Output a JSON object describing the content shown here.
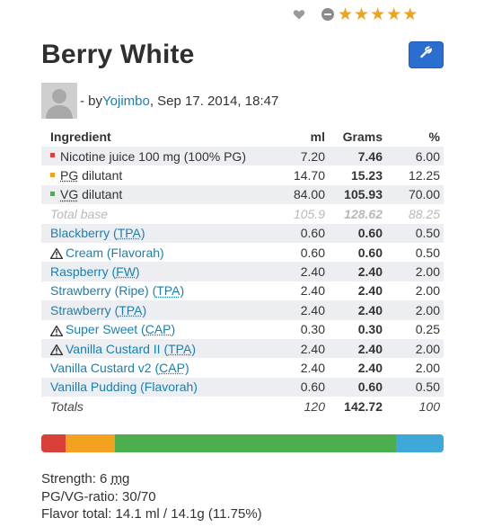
{
  "rating": {
    "stars": 5,
    "star_glyph": "★",
    "icons": [
      "heart-icon",
      "minus-icon"
    ],
    "star_color": "#f0a21b"
  },
  "recipe": {
    "title": "Berry White",
    "edit_icon": "wrench-icon",
    "author_prefix": "- by ",
    "author": "Yojimbo",
    "date": ", Sep 17. 2014, 18:47"
  },
  "table": {
    "headers": {
      "ingredient": "Ingredient",
      "ml": "ml",
      "grams": "Grams",
      "percent": "%"
    },
    "base": [
      {
        "name": "Nicotine juice 100 mg (100% PG)",
        "ml": "7.20",
        "grams": "7.46",
        "percent": "6.00",
        "color": "#d9403a"
      },
      {
        "name_abbr": "PG",
        "name_rest": " dilutant",
        "ml": "14.70",
        "grams": "15.23",
        "percent": "12.25",
        "color": "#f4a020"
      },
      {
        "name_abbr": "VG",
        "name_rest": " dilutant",
        "ml": "84.00",
        "grams": "105.93",
        "percent": "70.00",
        "color": "#4cae4c"
      }
    ],
    "total_base": {
      "label": "Total base",
      "ml": "105.9",
      "grams": "128.62",
      "percent": "88.25"
    },
    "flavors": [
      {
        "name": "Blackberry (",
        "abbr": "TPA",
        "close": ")",
        "warn": false,
        "ml": "0.60",
        "grams": "0.60",
        "percent": "0.50"
      },
      {
        "name": "Cream (Flavorah)",
        "abbr": "",
        "close": "",
        "warn": true,
        "ml": "0.60",
        "grams": "0.60",
        "percent": "0.50"
      },
      {
        "name": "Raspberry (",
        "abbr": "FW",
        "close": ")",
        "warn": false,
        "ml": "2.40",
        "grams": "2.40",
        "percent": "2.00"
      },
      {
        "name": "Strawberry (Ripe) (",
        "abbr": "TPA",
        "close": ")",
        "warn": false,
        "ml": "2.40",
        "grams": "2.40",
        "percent": "2.00"
      },
      {
        "name": "Strawberry (",
        "abbr": "TPA",
        "close": ")",
        "warn": false,
        "ml": "2.40",
        "grams": "2.40",
        "percent": "2.00"
      },
      {
        "name": "Super Sweet (",
        "abbr": "CAP",
        "close": ")",
        "warn": true,
        "ml": "0.30",
        "grams": "0.30",
        "percent": "0.25"
      },
      {
        "name": "Vanilla Custard II (",
        "abbr": "TPA",
        "close": ")",
        "warn": true,
        "ml": "2.40",
        "grams": "2.40",
        "percent": "2.00"
      },
      {
        "name": "Vanilla Custard v2 (",
        "abbr": "CAP",
        "close": ")",
        "warn": false,
        "ml": "2.40",
        "grams": "2.40",
        "percent": "2.00"
      },
      {
        "name": "Vanilla Pudding (Flavorah)",
        "abbr": "",
        "close": "",
        "warn": false,
        "ml": "0.60",
        "grams": "0.60",
        "percent": "0.50"
      }
    ],
    "totals": {
      "label": "Totals",
      "ml": "120",
      "grams": "142.72",
      "percent": "100"
    }
  },
  "composition_bar": [
    {
      "name": "nicotine",
      "percent": 6.0,
      "color": "#d9403a"
    },
    {
      "name": "pg",
      "percent": 12.25,
      "color": "#f4a020"
    },
    {
      "name": "vg",
      "percent": 70.0,
      "color": "#4cae4c"
    },
    {
      "name": "flavor",
      "percent": 11.75,
      "color": "#3ea8d8"
    }
  ],
  "stats": {
    "strength_label": "Strength: 6 ",
    "strength_unit": "mg",
    "pgvg": "PG/VG-ratio: 30/70",
    "flavor_total": "Flavor total: 14.1 ml / 14.1g (11.75%)"
  }
}
